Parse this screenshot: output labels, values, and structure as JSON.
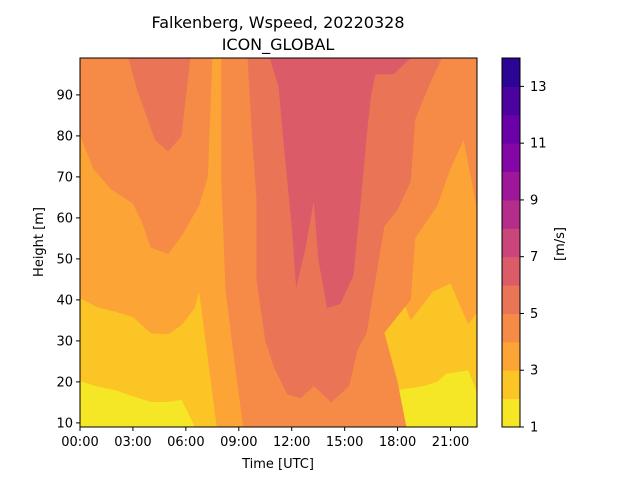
{
  "chart_data": {
    "type": "heatmap",
    "subtype": "filled-contour",
    "title": "Falkenberg, Wspeed, 20220328",
    "subtitle": "ICON_GLOBAL",
    "xlabel": "Time [UTC]",
    "ylabel": "Height [m]",
    "x_ticks": [
      "00:00",
      "03:00",
      "06:00",
      "09:00",
      "12:00",
      "15:00",
      "18:00",
      "21:00"
    ],
    "y_ticks": [
      10,
      20,
      30,
      40,
      50,
      60,
      70,
      80,
      90
    ],
    "xlim": [
      "00:00",
      "22:30"
    ],
    "ylim": [
      9,
      99
    ],
    "colorbar": {
      "label": "[m/s]",
      "levels": [
        1,
        2,
        3,
        4,
        5,
        6,
        7,
        8,
        9,
        10,
        11,
        12,
        13,
        14
      ],
      "tick_labels": [
        1,
        3,
        5,
        7,
        9,
        11,
        13
      ],
      "colors": [
        "#f5e726",
        "#fcc526",
        "#fca436",
        "#f58b47",
        "#ea7456",
        "#db5c68",
        "#c9457a",
        "#b52d8b",
        "#9e179a",
        "#8506a6",
        "#6a00a8",
        "#4c02a1",
        "#2b0594"
      ]
    },
    "band_values_m_s": [
      1.5,
      2.5,
      3.5,
      4.5,
      5.5,
      6.5
    ],
    "contours": [
      {
        "level": 2,
        "boundary": [
          [
            "00:00",
            20.2
          ],
          [
            "01:00",
            18.8
          ],
          [
            "02:00",
            18
          ],
          [
            "03:00",
            16.5
          ],
          [
            "04:00",
            15.1
          ],
          [
            "05:00",
            15.1
          ],
          [
            "05:45",
            15.6
          ],
          [
            "06:20",
            10.6
          ],
          [
            "06:30",
            9
          ],
          [
            "18:00",
            9
          ],
          [
            "17:30",
            14
          ],
          [
            "18:00",
            18
          ],
          [
            "19:30",
            19
          ],
          [
            "20:15",
            20
          ],
          [
            "20:45",
            22
          ],
          [
            "22:00",
            22.8
          ],
          [
            "22:30",
            17.4
          ]
        ]
      },
      {
        "level": 3,
        "boundary": [
          [
            "00:00",
            40.4
          ],
          [
            "01:00",
            38.2
          ],
          [
            "02:00",
            37.1
          ],
          [
            "03:00",
            35.8
          ],
          [
            "04:00",
            31.9
          ],
          [
            "05:00",
            31.6
          ],
          [
            "05:45",
            33.8
          ],
          [
            "06:30",
            38
          ],
          [
            "06:45",
            42
          ],
          [
            "07:45",
            9
          ],
          [
            "09:30",
            9
          ],
          [
            "09:00",
            22
          ],
          [
            "08:45",
            33
          ],
          [
            "08:45",
            42
          ],
          [
            "09:00",
            60
          ],
          [
            "08:15",
            65
          ],
          [
            "08:15",
            99
          ],
          [
            "09:45",
            99
          ],
          [
            "09:45",
            70
          ],
          [
            "09:30",
            44
          ],
          [
            "10:00",
            25
          ],
          [
            "10:40",
            18
          ],
          [
            "11:30",
            15.4
          ],
          [
            "12:15",
            19
          ],
          [
            "13:10",
            15.1
          ],
          [
            "14:15",
            19
          ],
          [
            "15:00",
            26
          ],
          [
            "15:30",
            33
          ],
          [
            "16:45",
            41
          ],
          [
            "17:45",
            46
          ],
          [
            "18:45",
            35
          ],
          [
            "20:00",
            42
          ],
          [
            "21:00",
            44
          ],
          [
            "22:00",
            34
          ],
          [
            "22:30",
            37
          ]
        ]
      },
      {
        "level": 4,
        "boundary": [
          [
            "00:00",
            80.2
          ],
          [
            "00:45",
            72
          ],
          [
            "01:45",
            67
          ],
          [
            "03:00",
            63.5
          ],
          [
            "03:30",
            59
          ],
          [
            "04:00",
            52.8
          ],
          [
            "05:00",
            51.2
          ],
          [
            "05:45",
            55.5
          ],
          [
            "06:45",
            63
          ],
          [
            "07:15",
            70
          ],
          [
            "07:30",
            99
          ],
          [
            "08:00",
            99
          ],
          [
            "08:00",
            70
          ],
          [
            "08:15",
            42
          ],
          [
            "08:45",
            25
          ],
          [
            "09:15",
            9
          ],
          [
            "18:30",
            9
          ],
          [
            "18:00",
            20
          ],
          [
            "17:15",
            32
          ],
          [
            "18:00",
            36
          ],
          [
            "18:45",
            40
          ],
          [
            "19:00",
            55
          ],
          [
            "20:15",
            63
          ],
          [
            "21:00",
            72
          ],
          [
            "21:45",
            79
          ],
          [
            "22:30",
            62
          ],
          [
            "22:30",
            99
          ]
        ]
      },
      {
        "level": 5,
        "boundary": [
          [
            "02:45",
            99
          ],
          [
            "03:15",
            91
          ],
          [
            "03:45",
            85
          ],
          [
            "04:15",
            79
          ],
          [
            "05:00",
            76.2
          ],
          [
            "05:45",
            80
          ],
          [
            "06:15",
            99
          ],
          [
            "09:30",
            99
          ],
          [
            "09:45",
            80
          ],
          [
            "10:00",
            65
          ],
          [
            "10:00",
            45
          ],
          [
            "10:30",
            30
          ],
          [
            "11:00",
            23.5
          ],
          [
            "11:45",
            17
          ],
          [
            "12:30",
            16
          ],
          [
            "13:15",
            19
          ],
          [
            "14:15",
            15
          ],
          [
            "15:15",
            19
          ],
          [
            "15:45",
            28
          ],
          [
            "16:15",
            32
          ],
          [
            "16:45",
            45
          ],
          [
            "17:15",
            58
          ],
          [
            "18:00",
            62
          ],
          [
            "18:45",
            69
          ],
          [
            "19:00",
            84
          ],
          [
            "19:45",
            92
          ],
          [
            "20:30",
            99
          ]
        ]
      },
      {
        "level": 6,
        "boundary": [
          [
            "10:45",
            99
          ],
          [
            "11:15",
            92
          ],
          [
            "11:30",
            80
          ],
          [
            "11:45",
            69
          ],
          [
            "12:00",
            58
          ],
          [
            "12:15",
            43
          ],
          [
            "12:45",
            52
          ],
          [
            "13:15",
            64
          ],
          [
            "13:30",
            50
          ],
          [
            "14:00",
            38
          ],
          [
            "14:45",
            39
          ],
          [
            "15:30",
            46
          ],
          [
            "16:00",
            68
          ],
          [
            "16:15",
            80
          ],
          [
            "16:30",
            90
          ],
          [
            "16:45",
            95
          ],
          [
            "17:45",
            95
          ],
          [
            "18:45",
            99
          ]
        ]
      }
    ]
  }
}
